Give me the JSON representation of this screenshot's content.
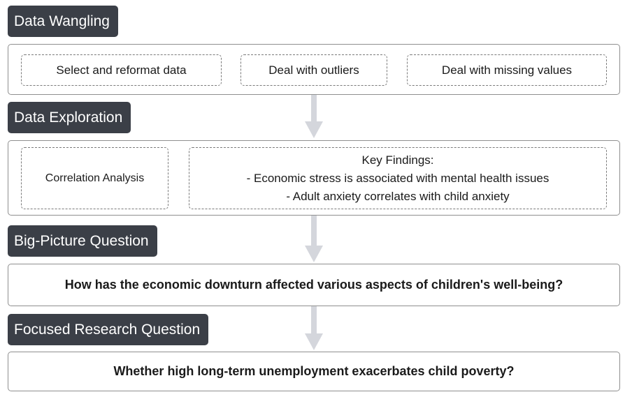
{
  "stages": {
    "wrangling": {
      "label": "Data Wangling",
      "steps": [
        "Select and reformat data",
        "Deal with outliers",
        "Deal with missing values"
      ]
    },
    "exploration": {
      "label": "Data Exploration",
      "analysis": "Correlation Analysis",
      "findings": {
        "title": "Key Findings:",
        "items": [
          "- Economic stress is associated with mental health issues",
          "- Adult anxiety correlates with child anxiety"
        ]
      }
    },
    "big_picture": {
      "label": "Big-Picture Question",
      "question": "How has the economic downturn affected various aspects of children's well-being?"
    },
    "focused": {
      "label": "Focused Research Question",
      "question": "Whether high long-term unemployment exacerbates child poverty?"
    }
  },
  "colors": {
    "label_bg": "#3b3f47",
    "arrow": "#d4d6dc",
    "border": "#8f8f8f"
  }
}
